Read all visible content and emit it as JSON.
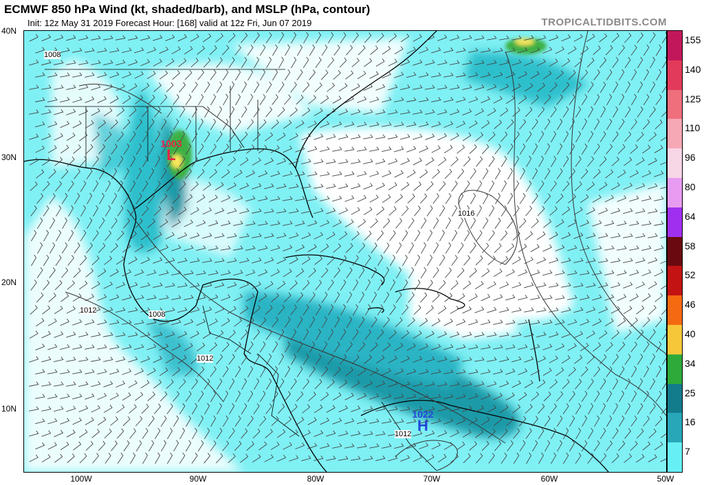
{
  "header": {
    "title": "ECMWF 850 hPa Wind (kt, shaded/barb), and MSLP (hPa, contour)",
    "subtitle": "Init: 12z May 31 2019   Forecast Hour: [168]   valid at 12z Fri, Jun 07 2019",
    "brand": "TROPICALTIDBITS.COM"
  },
  "axes": {
    "lat_labels": [
      "40N",
      "30N",
      "20N",
      "10N"
    ],
    "lon_labels": [
      "100W",
      "90W",
      "80W",
      "70W",
      "60W",
      "50W"
    ]
  },
  "colorbar": {
    "labels": [
      "155",
      "140",
      "125",
      "110",
      "96",
      "80",
      "64",
      "58",
      "52",
      "46",
      "40",
      "34",
      "25",
      "16",
      "7"
    ],
    "colors": [
      "#c2185b",
      "#e23a5a",
      "#ef6f7d",
      "#f6a8b5",
      "#f7d6e6",
      "#e79cf2",
      "#a030ef",
      "#6a0a10",
      "#c31313",
      "#f46a10",
      "#f7c73a",
      "#2eaa3a",
      "#127b8c",
      "#28a7b9",
      "#66f0f5"
    ]
  },
  "pressure_systems": [
    {
      "type": "L",
      "value": "1003",
      "color": "#e8224a"
    },
    {
      "type": "H",
      "value": "1022",
      "color": "#2444d8"
    }
  ],
  "isobar_labels": [
    "1008",
    "1016",
    "1012",
    "1008",
    "1012",
    "1012"
  ]
}
